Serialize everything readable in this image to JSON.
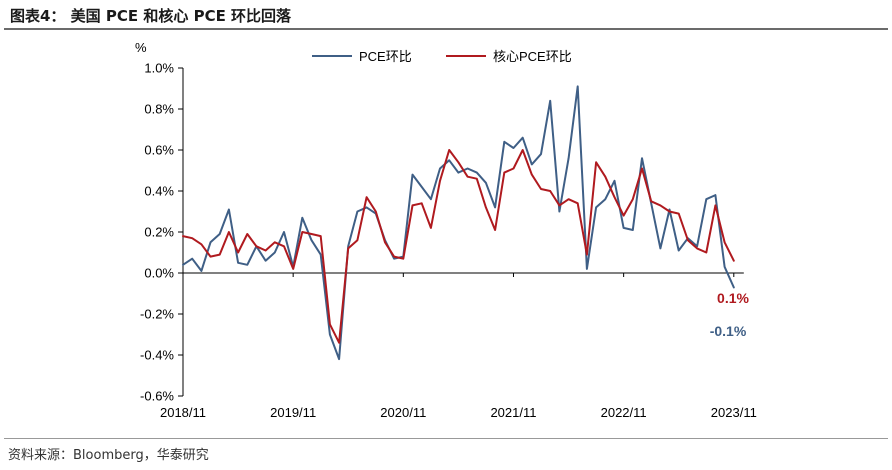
{
  "header": {
    "title": "图表4：  美国 PCE 和核心 PCE 环比回落"
  },
  "source": {
    "text": "资料来源：Bloomberg，华泰研究"
  },
  "chart_data": {
    "type": "line",
    "ylabel": "%",
    "ylim": [
      -0.6,
      1.0
    ],
    "y_ticks": [
      -0.6,
      -0.4,
      -0.2,
      0.0,
      0.2,
      0.4,
      0.6,
      0.8,
      1.0
    ],
    "y_tick_labels": [
      "-0.6%",
      "-0.4%",
      "-0.2%",
      "0.0%",
      "0.2%",
      "0.4%",
      "0.6%",
      "0.8%",
      "1.0%"
    ],
    "x_tick_labels": [
      "2018/11",
      "2019/11",
      "2020/11",
      "2021/11",
      "2022/11",
      "2023/11"
    ],
    "x_tick_indices": [
      0,
      12,
      24,
      36,
      48,
      60
    ],
    "grid": false,
    "legend_placement": "top-center",
    "series": [
      {
        "name": "PCE环比",
        "color": "#3f5f86",
        "values": [
          0.04,
          0.07,
          0.01,
          0.15,
          0.19,
          0.31,
          0.05,
          0.04,
          0.13,
          0.06,
          0.1,
          0.2,
          0.03,
          0.27,
          0.16,
          0.09,
          -0.3,
          -0.42,
          0.13,
          0.3,
          0.32,
          0.29,
          0.16,
          0.07,
          0.08,
          0.48,
          0.42,
          0.36,
          0.51,
          0.55,
          0.49,
          0.51,
          0.49,
          0.44,
          0.32,
          0.64,
          0.61,
          0.66,
          0.53,
          0.58,
          0.84,
          0.3,
          0.56,
          0.91,
          0.02,
          0.32,
          0.36,
          0.45,
          0.22,
          0.21,
          0.56,
          0.34,
          0.12,
          0.31,
          0.11,
          0.17,
          0.13,
          0.36,
          0.38,
          0.03,
          -0.07
        ],
        "end_label": "-0.1%"
      },
      {
        "name": "核心PCE环比",
        "color": "#b01a1f",
        "values": [
          0.18,
          0.17,
          0.14,
          0.08,
          0.09,
          0.2,
          0.1,
          0.19,
          0.13,
          0.11,
          0.15,
          0.13,
          0.02,
          0.2,
          0.19,
          0.18,
          -0.25,
          -0.34,
          0.12,
          0.16,
          0.37,
          0.3,
          0.15,
          0.08,
          0.07,
          0.33,
          0.34,
          0.22,
          0.45,
          0.6,
          0.54,
          0.47,
          0.46,
          0.32,
          0.21,
          0.49,
          0.51,
          0.6,
          0.48,
          0.41,
          0.4,
          0.33,
          0.36,
          0.34,
          0.09,
          0.54,
          0.47,
          0.37,
          0.28,
          0.36,
          0.51,
          0.35,
          0.33,
          0.3,
          0.29,
          0.16,
          0.12,
          0.1,
          0.33,
          0.15,
          0.06
        ],
        "end_label": "0.1%"
      }
    ]
  }
}
